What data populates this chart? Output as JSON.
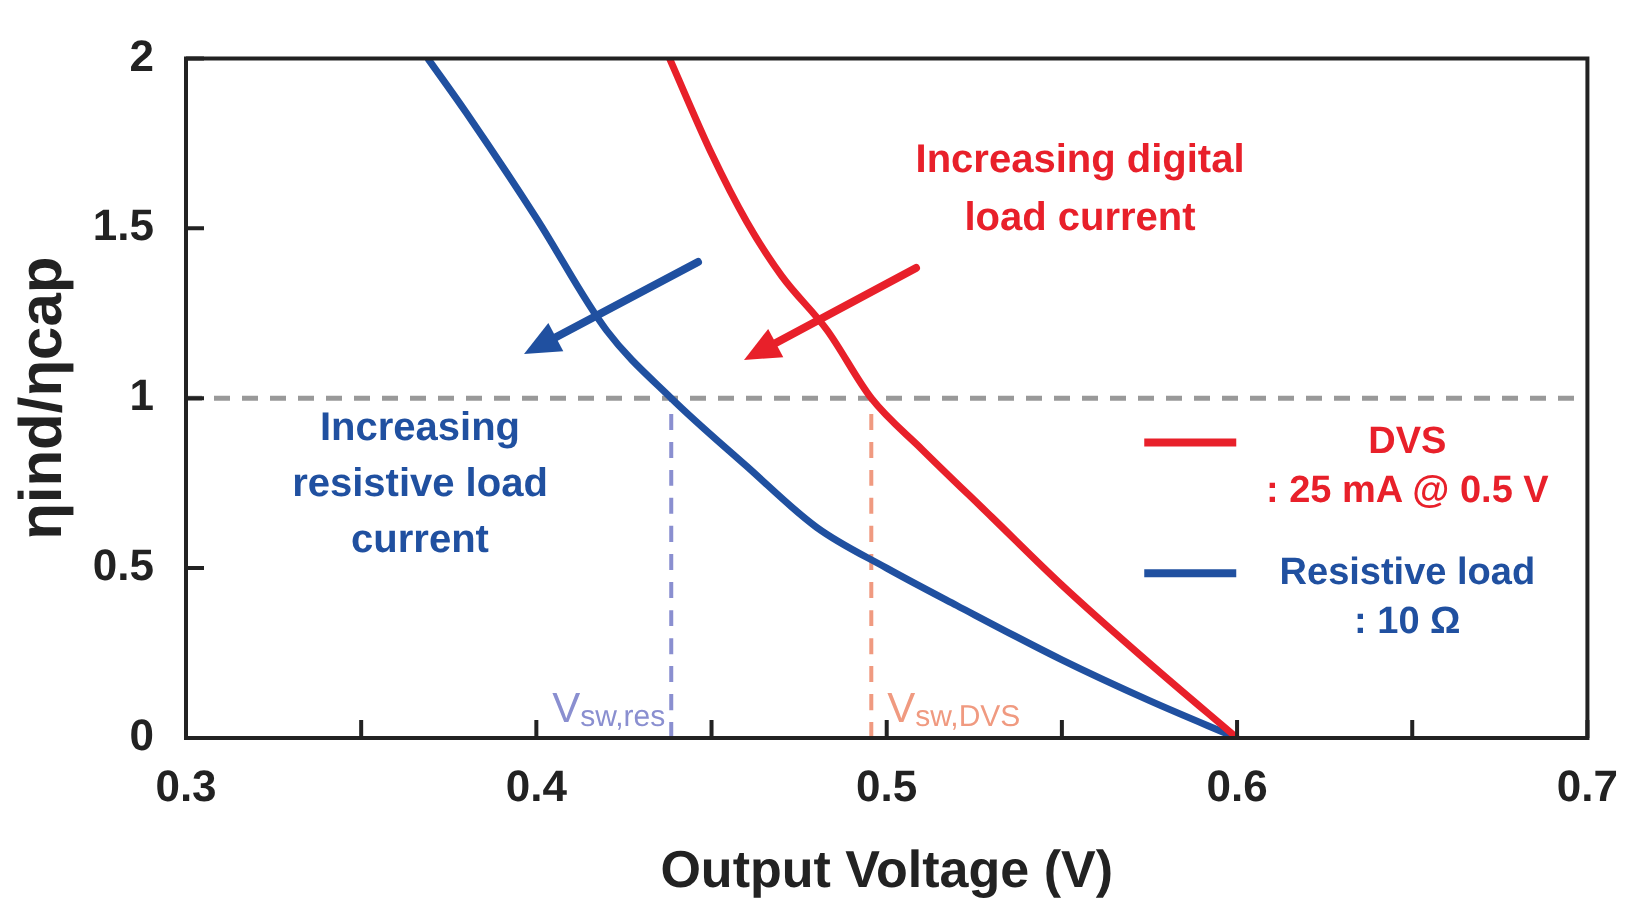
{
  "chart_data": {
    "type": "line",
    "xlabel": "Output Voltage (V)",
    "ylabel": "ηind/ηcap",
    "xlim": [
      0.3,
      0.7
    ],
    "ylim": [
      0,
      2
    ],
    "xticks": [
      0.3,
      {
        "value": 0.35,
        "label": null
      },
      0.4,
      {
        "value": 0.45,
        "label": null
      },
      0.5,
      {
        "value": 0.55,
        "label": null
      },
      0.6,
      {
        "value": 0.65,
        "label": null
      },
      0.7
    ],
    "yticks": [
      0,
      0.5,
      1,
      1.5,
      2
    ],
    "grid": false,
    "legend": "right",
    "series": [
      {
        "name": "DVS\n: 25 mA @ 0.5 V",
        "color": "#e8202a",
        "x": [
          0.438,
          0.45,
          0.46,
          0.47,
          0.483,
          0.4956,
          0.51,
          0.53,
          0.55,
          0.575,
          0.6
        ],
        "values": [
          2.0,
          1.72,
          1.52,
          1.36,
          1.2,
          1.0,
          0.85,
          0.65,
          0.45,
          0.22,
          0
        ]
      },
      {
        "name": "Resistive load\n: 10 Ω",
        "color": "#2050a0",
        "x": [
          0.369,
          0.38,
          0.4,
          0.42,
          0.4385,
          0.46,
          0.48,
          0.5,
          0.52,
          0.55,
          0.575,
          0.6
        ],
        "values": [
          2.0,
          1.84,
          1.53,
          1.2,
          1.0,
          0.8,
          0.62,
          0.5,
          0.39,
          0.23,
          0.11,
          0
        ]
      },
      {
        "color": "#8a8fd0",
        "line_style": "dashed",
        "x": [
          0.4385,
          0.4385
        ],
        "values": [
          0,
          1
        ]
      },
      {
        "color": "#f09a80",
        "line_style": "dashed",
        "x": [
          0.4956,
          0.4956
        ],
        "values": [
          0,
          1
        ]
      }
    ],
    "ref_lines": [
      {
        "axis": "y",
        "value": 1,
        "color": "#999999",
        "line_style": "dashed"
      }
    ],
    "annotations": [
      "Increasing digital load current",
      "Increasing resistive load current",
      {
        "text": "V$_{sw,res}$",
        "x": 0.4385,
        "y": 0
      },
      {
        "text": "V$_{sw,DVS}$",
        "x": 0.4956,
        "y": 0
      }
    ]
  }
}
